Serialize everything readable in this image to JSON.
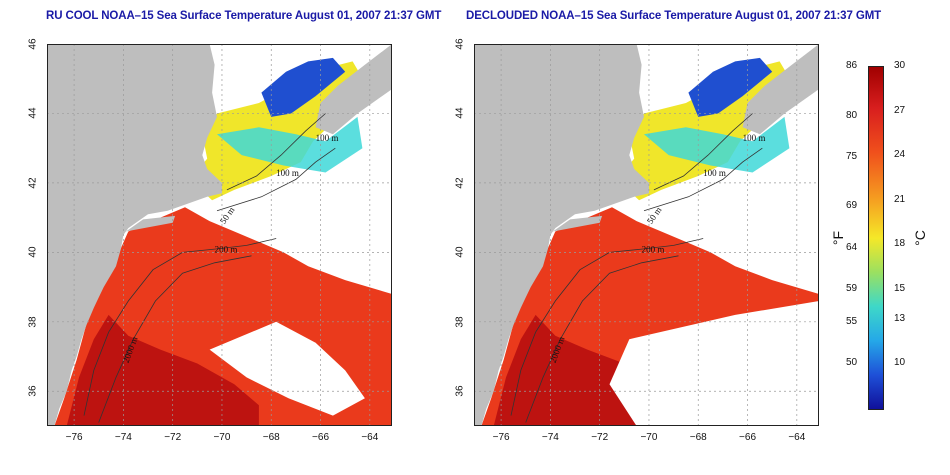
{
  "panels": [
    {
      "id": "left",
      "title": "RU COOL NOAA–15 Sea Surface Temperature August 01, 2007 21:37 GMT",
      "cloud_color": "#ffffff",
      "clouded": true
    },
    {
      "id": "right",
      "title": "DECLOUDED NOAA–15 Sea Surface Temperature August 01, 2007 21:37 GMT",
      "cloud_color": "#ffffff",
      "clouded": false
    }
  ],
  "axes": {
    "x_ticks": [
      "−76",
      "−74",
      "−72",
      "−70",
      "−68",
      "−66",
      "−64"
    ],
    "x_values": [
      -76,
      -74,
      -72,
      -70,
      -68,
      -66,
      -64
    ],
    "x_range": [
      -77.1,
      -63.1
    ],
    "y_ticks": [
      "36",
      "38",
      "40",
      "42",
      "44",
      "46"
    ],
    "y_values": [
      36,
      38,
      40,
      42,
      44,
      46
    ],
    "y_range": [
      35,
      46
    ]
  },
  "contour_labels": [
    "100 m",
    "50 m",
    "200 m",
    "2000 m",
    "100 m"
  ],
  "colorbar": {
    "fahrenheit_ticks": [
      "86",
      "80",
      "75",
      "69",
      "64",
      "59",
      "55",
      "50"
    ],
    "fahrenheit_values": [
      86,
      80,
      75,
      69,
      64,
      59,
      55,
      50
    ],
    "celsius_ticks": [
      "30",
      "27",
      "24",
      "21",
      "18",
      "15",
      "13",
      "10"
    ],
    "celsius_values": [
      30,
      27,
      24,
      21,
      18,
      15,
      13,
      10
    ],
    "range_c": [
      7,
      30
    ],
    "unit_f": "°F",
    "unit_c": "°C"
  },
  "colors": {
    "land": "#bebebe",
    "warm": "#ea3a1c",
    "hot": "#b81010",
    "cool_yellow": "#f0e62a",
    "cold_blue": "#1f4fd0",
    "cyan": "#3ed8d8"
  }
}
